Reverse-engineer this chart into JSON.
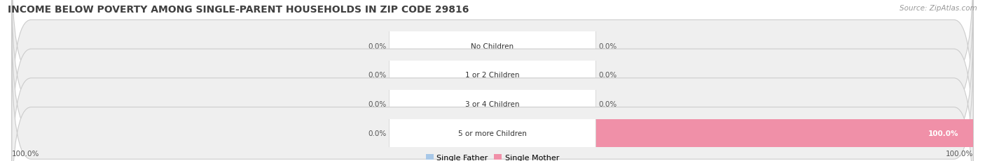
{
  "title": "INCOME BELOW POVERTY AMONG SINGLE-PARENT HOUSEHOLDS IN ZIP CODE 29816",
  "source": "Source: ZipAtlas.com",
  "categories": [
    "No Children",
    "1 or 2 Children",
    "3 or 4 Children",
    "5 or more Children"
  ],
  "single_father": [
    0.0,
    0.0,
    0.0,
    0.0
  ],
  "single_mother": [
    0.0,
    0.0,
    0.0,
    100.0
  ],
  "father_color": "#a8c8e8",
  "mother_color": "#f090a8",
  "bar_bg_color": "#efefef",
  "bar_border_color": "#cccccc",
  "center_label_bg": "#ffffff",
  "title_fontsize": 10,
  "source_fontsize": 7.5,
  "value_fontsize": 7.5,
  "cat_fontsize": 7.5,
  "legend_fontsize": 8,
  "fig_bg": "#ffffff",
  "bottom_labels": [
    "100.0%",
    "100.0%"
  ]
}
